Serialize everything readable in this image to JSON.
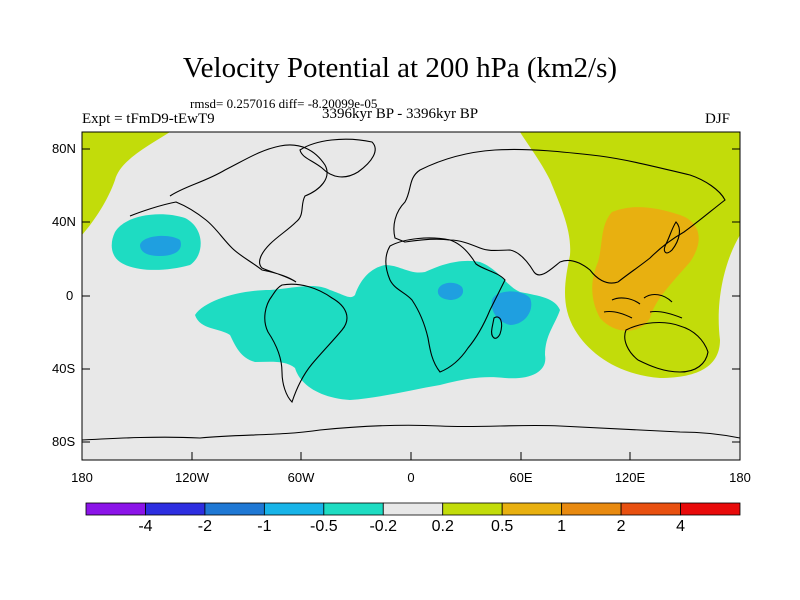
{
  "title": "Velocity Potential at 200 hPa (km2/s)",
  "stats": "rmsd= 0.257016 diff= -8.20099e-05",
  "experiment": "Expt = tFmD9-tEwT9",
  "period": "3396kyr BP - 3396kyr BP",
  "season": "DJF",
  "lat_labels": [
    "80N",
    "40N",
    "0",
    "40S",
    "80S"
  ],
  "lon_labels": [
    "180",
    "120W",
    "60W",
    "0",
    "60E",
    "120E",
    "180"
  ],
  "colorbar": {
    "colors": [
      "#8b14e8",
      "#2d2ee0",
      "#1f78d4",
      "#18b4e8",
      "#1edcc2",
      "#e8e8e8",
      "#c2dc0a",
      "#e8b010",
      "#e88a10",
      "#e85010",
      "#e80a0a"
    ],
    "labels": [
      "-4",
      "-2",
      "-1",
      "-0.5",
      "-0.2",
      "0.2",
      "0.5",
      "1",
      "2",
      "4"
    ]
  },
  "map_colors": {
    "background": "#e8e8e8",
    "positive_weak": "#c2dc0a",
    "positive_mid": "#e8b010",
    "negative_weak": "#1edcc2",
    "negative_mid": "#18b4e8",
    "negative_strong": "#1f9fe0",
    "coast": "#000000"
  }
}
